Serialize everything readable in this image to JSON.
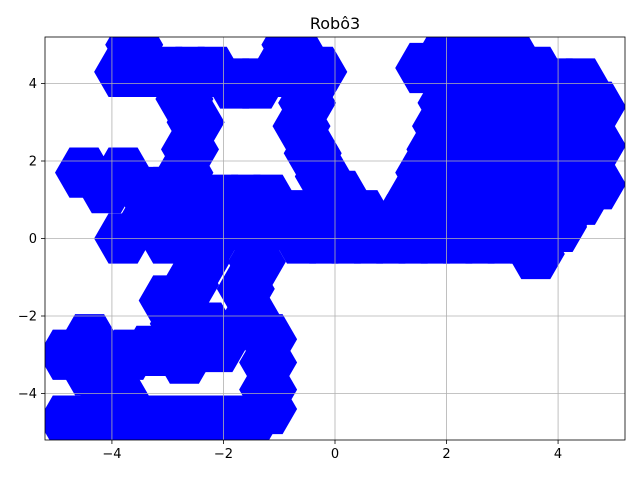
{
  "chart_data": {
    "type": "scatter",
    "title": "Robô3",
    "xlabel": "",
    "ylabel": "",
    "xlim": [
      -5.2,
      5.2
    ],
    "ylim": [
      -5.2,
      5.2
    ],
    "xticks": [
      -4,
      -2,
      0,
      2,
      4
    ],
    "yticks": [
      -4,
      -2,
      0,
      2,
      4
    ],
    "xtick_labels": [
      "−4",
      "−2",
      "0",
      "2",
      "4"
    ],
    "ytick_labels": [
      "−4",
      "−2",
      "0",
      "2",
      "4"
    ],
    "grid": true,
    "marker": "hexagon",
    "marker_color": "#0000ff",
    "points": [
      [
        -3.8,
        4.3
      ],
      [
        -3.4,
        4.3
      ],
      [
        -3.0,
        4.3
      ],
      [
        -2.6,
        4.3
      ],
      [
        -2.2,
        4.3
      ],
      [
        -1.8,
        4.0
      ],
      [
        -1.4,
        4.0
      ],
      [
        -1.0,
        4.3
      ],
      [
        -0.6,
        4.6
      ],
      [
        -0.3,
        4.3
      ],
      [
        -3.6,
        5.0
      ],
      [
        -0.8,
        5.0
      ],
      [
        -2.7,
        3.6
      ],
      [
        -2.5,
        3.0
      ],
      [
        -2.6,
        2.3
      ],
      [
        -2.7,
        1.7
      ],
      [
        -0.5,
        3.5
      ],
      [
        -0.6,
        2.9
      ],
      [
        -0.4,
        2.2
      ],
      [
        -0.2,
        1.6
      ],
      [
        0.1,
        1.1
      ],
      [
        0.5,
        0.6
      ],
      [
        0.9,
        0.3
      ],
      [
        -4.5,
        1.7
      ],
      [
        -4.1,
        1.3
      ],
      [
        -3.8,
        1.7
      ],
      [
        -3.4,
        1.2
      ],
      [
        -3.0,
        1.2
      ],
      [
        -2.6,
        1.2
      ],
      [
        -3.8,
        0.0
      ],
      [
        -3.4,
        0.4
      ],
      [
        -3.0,
        0.0
      ],
      [
        -2.6,
        0.4
      ],
      [
        -2.2,
        0.0
      ],
      [
        -1.8,
        0.4
      ],
      [
        -1.4,
        0.0
      ],
      [
        -1.0,
        0.4
      ],
      [
        -0.6,
        0.0
      ],
      [
        -0.2,
        0.0
      ],
      [
        0.2,
        0.0
      ],
      [
        0.6,
        0.0
      ],
      [
        1.0,
        0.0
      ],
      [
        1.4,
        0.0
      ],
      [
        1.8,
        0.0
      ],
      [
        2.2,
        0.0
      ],
      [
        2.6,
        0.0
      ],
      [
        3.0,
        0.0
      ],
      [
        3.4,
        0.0
      ],
      [
        3.8,
        0.2
      ],
      [
        -2.0,
        1.0
      ],
      [
        -1.6,
        1.0
      ],
      [
        -1.2,
        1.0
      ],
      [
        -2.3,
        0.6
      ],
      [
        -1.9,
        0.6
      ],
      [
        -1.5,
        0.6
      ],
      [
        -1.1,
        0.6
      ],
      [
        -0.7,
        0.6
      ],
      [
        -1.4,
        -0.6
      ],
      [
        -1.6,
        -1.3
      ],
      [
        -1.5,
        -2.0
      ],
      [
        -2.4,
        -0.6
      ],
      [
        -2.6,
        -1.2
      ],
      [
        -3.0,
        -1.6
      ],
      [
        -2.8,
        -2.2
      ],
      [
        -2.3,
        -2.3
      ],
      [
        -2.1,
        -2.8
      ],
      [
        -2.8,
        -2.9
      ],
      [
        -2.7,
        -3.1
      ],
      [
        -3.3,
        -2.9
      ],
      [
        -3.7,
        -3.0
      ],
      [
        -1.2,
        -2.6
      ],
      [
        -1.2,
        -3.2
      ],
      [
        -1.2,
        -3.9
      ],
      [
        -1.2,
        -4.4
      ],
      [
        -1.5,
        -4.7
      ],
      [
        -4.8,
        -3.0
      ],
      [
        -4.4,
        -2.6
      ],
      [
        -4.4,
        -3.4
      ],
      [
        -4.1,
        -3.9
      ],
      [
        -3.8,
        -4.2
      ],
      [
        -4.8,
        -4.7
      ],
      [
        -4.4,
        -4.7
      ],
      [
        -4.0,
        -4.7
      ],
      [
        -3.6,
        -4.7
      ],
      [
        -3.2,
        -4.7
      ],
      [
        -2.8,
        -4.7
      ],
      [
        -2.4,
        -4.7
      ],
      [
        -2.0,
        -4.7
      ],
      [
        -1.7,
        -4.7
      ],
      [
        1.6,
        4.4
      ],
      [
        2.0,
        4.8
      ],
      [
        2.4,
        4.8
      ],
      [
        2.8,
        4.8
      ],
      [
        3.2,
        4.6
      ],
      [
        3.6,
        4.3
      ],
      [
        4.0,
        4.0
      ],
      [
        4.4,
        4.0
      ],
      [
        4.7,
        3.4
      ],
      [
        4.7,
        2.4
      ],
      [
        4.7,
        1.4
      ],
      [
        4.4,
        1.0
      ],
      [
        1.9,
        4.4
      ],
      [
        2.3,
        4.2
      ],
      [
        2.7,
        4.2
      ],
      [
        3.1,
        4.0
      ],
      [
        3.5,
        3.9
      ],
      [
        2.0,
        3.5
      ],
      [
        2.4,
        3.4
      ],
      [
        2.8,
        3.4
      ],
      [
        3.2,
        3.4
      ],
      [
        3.6,
        3.4
      ],
      [
        4.0,
        3.4
      ],
      [
        4.4,
        3.4
      ],
      [
        1.9,
        2.9
      ],
      [
        2.3,
        2.8
      ],
      [
        2.7,
        2.8
      ],
      [
        3.1,
        2.8
      ],
      [
        3.5,
        2.8
      ],
      [
        3.9,
        2.8
      ],
      [
        4.3,
        2.8
      ],
      [
        1.8,
        2.3
      ],
      [
        2.2,
        2.2
      ],
      [
        2.6,
        2.2
      ],
      [
        3.0,
        2.2
      ],
      [
        3.4,
        2.2
      ],
      [
        3.8,
        2.2
      ],
      [
        4.2,
        2.2
      ],
      [
        1.6,
        1.7
      ],
      [
        2.0,
        1.6
      ],
      [
        2.4,
        1.6
      ],
      [
        2.8,
        1.6
      ],
      [
        3.2,
        1.6
      ],
      [
        3.6,
        1.6
      ],
      [
        4.0,
        1.6
      ],
      [
        1.4,
        1.0
      ],
      [
        1.8,
        1.0
      ],
      [
        2.2,
        1.0
      ],
      [
        2.6,
        1.0
      ],
      [
        3.0,
        1.0
      ],
      [
        3.4,
        1.0
      ],
      [
        3.8,
        1.0
      ],
      [
        4.1,
        0.6
      ],
      [
        1.2,
        0.5
      ],
      [
        1.6,
        0.5
      ],
      [
        2.0,
        0.5
      ],
      [
        2.4,
        0.5
      ],
      [
        2.8,
        0.5
      ],
      [
        3.2,
        0.5
      ],
      [
        3.6,
        0.5
      ],
      [
        4.0,
        0.3
      ],
      [
        3.6,
        -0.4
      ]
    ]
  }
}
